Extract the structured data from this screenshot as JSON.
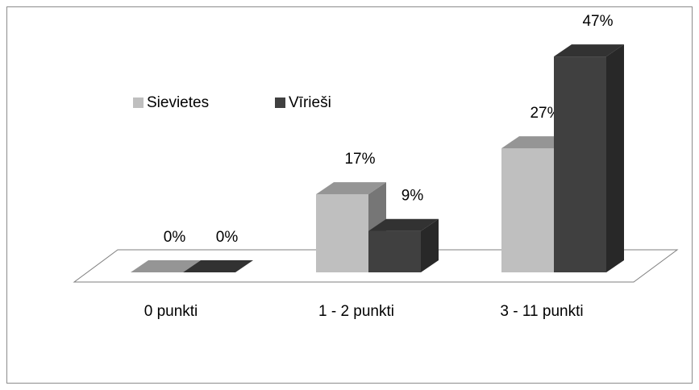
{
  "chart_data": {
    "type": "bar3d",
    "categories": [
      "0 punkti",
      "1 - 2 punkti",
      "3 - 11 punkti"
    ],
    "series": [
      {
        "name": "Sievietes",
        "color": "#bfbfbf",
        "values": [
          0,
          17,
          27
        ],
        "value_labels": [
          "0%",
          "17%",
          "27%"
        ]
      },
      {
        "name": "Vīrieši",
        "color": "#404040",
        "values": [
          0,
          9,
          47
        ],
        "value_labels": [
          "0%",
          "9%",
          "47%"
        ]
      }
    ],
    "legend": "top-left"
  }
}
